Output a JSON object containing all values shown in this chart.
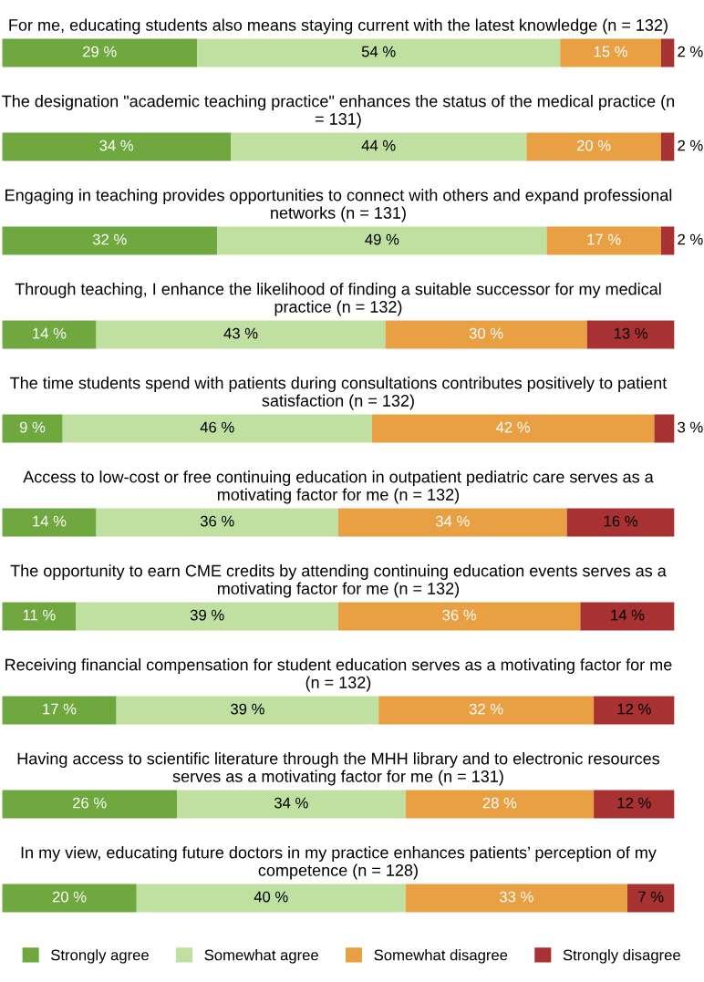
{
  "chart_data": {
    "type": "bar",
    "orientation": "horizontal",
    "stacked": true,
    "legend": "bottom",
    "categories": [
      "For me, educating students also means staying current with the latest knowledge (n = 132)",
      "The designation \"academic teaching practice\" enhances the status of the medical practice (n = 131)",
      "Engaging in teaching provides opportunities to connect with others and expand professional networks (n = 131)",
      "Through teaching, I enhance the likelihood of finding a suitable successor for my medical practice (n = 132)",
      "The time students spend with patients during consultations contributes positively to patient satisfaction (n = 132)",
      "Access to low-cost or free continuing education in outpatient pediatric care serves as a motivating factor for me (n = 132)",
      "The opportunity to earn CME credits by attending continuing education events serves as a motivating factor for me (n = 132)",
      "Receiving financial compensation for student education serves as a motivating factor for me (n = 132)",
      "Having access to scientific literature through the MHH library and to electronic resources serves as a motivating factor for me (n = 131)",
      "In my view, educating future doctors in my practice enhances patients’ perception of my competence (n = 128)"
    ],
    "series": [
      {
        "name": "Strongly agree",
        "color": "#6fa83e",
        "values": [
          29,
          34,
          32,
          14,
          9,
          14,
          11,
          17,
          26,
          20
        ],
        "value_labels": [
          "29 %",
          "34 %",
          "32 %",
          "14 %",
          "9 %",
          "14 %",
          "11 %",
          "17 %",
          "26 %",
          "20 %"
        ]
      },
      {
        "name": "Somewhat agree",
        "color": "#bfe0a0",
        "values": [
          54,
          44,
          49,
          43,
          46,
          36,
          39,
          39,
          34,
          40
        ],
        "value_labels": [
          "54 %",
          "44 %",
          "49 %",
          "43 %",
          "46 %",
          "36 %",
          "39 %",
          "39 %",
          "34 %",
          "40 %"
        ]
      },
      {
        "name": "Somewhat disagree",
        "color": "#e9a043",
        "values": [
          15,
          20,
          17,
          30,
          42,
          34,
          36,
          32,
          28,
          33
        ],
        "value_labels": [
          "15 %",
          "20 %",
          "17 %",
          "30 %",
          "42 %",
          "34 %",
          "36 %",
          "32 %",
          "28 %",
          "33 %"
        ]
      },
      {
        "name": "Strongly disagree",
        "color": "#a83232",
        "values": [
          2,
          2,
          2,
          13,
          3,
          16,
          14,
          12,
          12,
          7
        ],
        "value_labels": [
          "2 %",
          "2 %",
          "2 %",
          "13 %",
          "3 %",
          "16 %",
          "14 %",
          "12 %",
          "12 %",
          "7 %"
        ]
      }
    ]
  }
}
